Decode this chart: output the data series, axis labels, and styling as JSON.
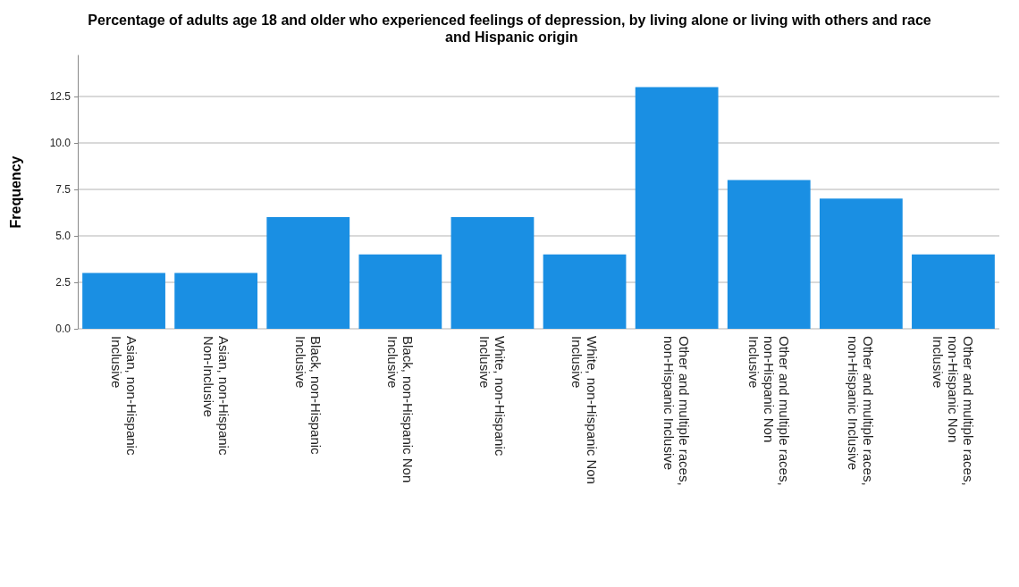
{
  "chart_data": {
    "type": "bar",
    "title": "Percentage of adults age 18 and older who experienced feelings of depression, by living alone or living with others and race and Hispanic origin",
    "ylabel": "Frequency",
    "categories": [
      "Asian, non-Hispanic Inclusive",
      "Asian, non-Hispanic Non-Inclusive",
      "Black, non-Hispanic Inclusive",
      "Black, non-Hispanic Non Inclusive",
      "White, non-Hispanic Inclusive",
      "White, non-Hispanic Non Inclusive",
      "Other and multiple races, non-Hispanic Inclusive",
      "Other and multiple races, non-Hispanic Non Inclusive",
      "Other and multiple races, non-Hispanic Inclusive",
      "Other and multiple races, non-Hispanic Non Inclusive"
    ],
    "values": [
      3,
      3,
      6,
      4,
      6,
      4,
      13,
      8,
      7,
      4
    ],
    "color": "#1a8fe3",
    "ylim": [
      0,
      14.7
    ],
    "yticks": [
      {
        "value": 0,
        "label": "0.0"
      },
      {
        "value": 2.5,
        "label": "2.5"
      },
      {
        "value": 5,
        "label": "5.0"
      },
      {
        "value": 7.5,
        "label": "7.5"
      },
      {
        "value": 10,
        "label": "10.0"
      },
      {
        "value": 12.5,
        "label": "12.5"
      }
    ],
    "grid": "y"
  }
}
